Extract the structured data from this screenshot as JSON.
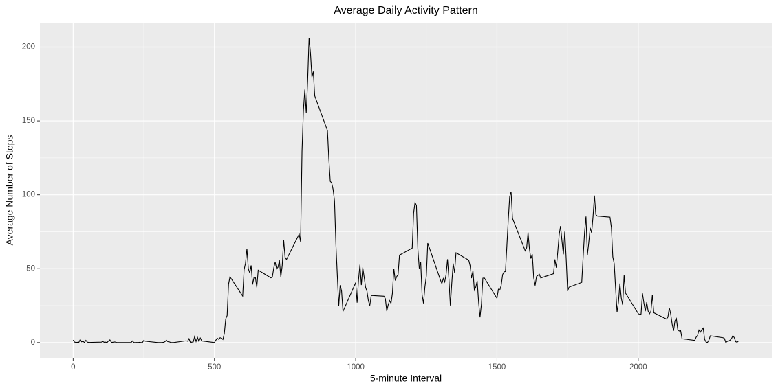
{
  "chart_data": {
    "type": "line",
    "title": "Average Daily Activity Pattern",
    "x_label": "5-minute Interval",
    "y_label": "Average Number of Steps",
    "x": [
      0,
      5,
      10,
      15,
      20,
      25,
      30,
      35,
      40,
      45,
      50,
      55,
      100,
      105,
      110,
      115,
      120,
      125,
      130,
      135,
      140,
      145,
      150,
      155,
      200,
      205,
      210,
      215,
      220,
      225,
      230,
      235,
      240,
      245,
      250,
      255,
      300,
      305,
      310,
      315,
      320,
      325,
      330,
      335,
      340,
      345,
      350,
      355,
      400,
      405,
      410,
      415,
      420,
      425,
      430,
      435,
      440,
      445,
      450,
      455,
      500,
      505,
      510,
      515,
      520,
      525,
      530,
      535,
      540,
      545,
      550,
      555,
      600,
      605,
      610,
      615,
      620,
      625,
      630,
      635,
      640,
      645,
      650,
      655,
      700,
      705,
      710,
      715,
      720,
      725,
      730,
      735,
      740,
      745,
      750,
      755,
      800,
      805,
      810,
      815,
      820,
      825,
      830,
      835,
      840,
      845,
      850,
      855,
      900,
      905,
      910,
      915,
      920,
      925,
      930,
      935,
      940,
      945,
      950,
      955,
      1000,
      1005,
      1010,
      1015,
      1020,
      1025,
      1030,
      1035,
      1040,
      1045,
      1050,
      1055,
      1100,
      1105,
      1110,
      1115,
      1120,
      1125,
      1130,
      1135,
      1140,
      1145,
      1150,
      1155,
      1200,
      1205,
      1210,
      1215,
      1220,
      1225,
      1230,
      1235,
      1240,
      1245,
      1250,
      1255,
      1300,
      1305,
      1310,
      1315,
      1320,
      1325,
      1330,
      1335,
      1340,
      1345,
      1350,
      1355,
      1400,
      1405,
      1410,
      1415,
      1420,
      1425,
      1430,
      1435,
      1440,
      1445,
      1450,
      1455,
      1500,
      1505,
      1510,
      1515,
      1520,
      1525,
      1530,
      1535,
      1540,
      1545,
      1550,
      1555,
      1600,
      1605,
      1610,
      1615,
      1620,
      1625,
      1630,
      1635,
      1640,
      1645,
      1650,
      1655,
      1700,
      1705,
      1710,
      1715,
      1720,
      1725,
      1730,
      1735,
      1740,
      1745,
      1750,
      1755,
      1800,
      1805,
      1810,
      1815,
      1820,
      1825,
      1830,
      1835,
      1840,
      1845,
      1850,
      1855,
      1900,
      1905,
      1910,
      1915,
      1920,
      1925,
      1930,
      1935,
      1940,
      1945,
      1950,
      1955,
      2000,
      2005,
      2010,
      2015,
      2020,
      2025,
      2030,
      2035,
      2040,
      2045,
      2050,
      2055,
      2100,
      2105,
      2110,
      2115,
      2120,
      2125,
      2130,
      2135,
      2140,
      2145,
      2150,
      2155,
      2200,
      2205,
      2210,
      2215,
      2220,
      2225,
      2230,
      2235,
      2240,
      2245,
      2250,
      2255,
      2300,
      2305,
      2310,
      2315,
      2320,
      2325,
      2330,
      2335,
      2340,
      2345,
      2350,
      2355
    ],
    "values": [
      1.7,
      0.3,
      0.1,
      0.2,
      0.1,
      2.1,
      0.5,
      0.9,
      0,
      1.5,
      0.3,
      0.1,
      0.3,
      0.7,
      0.2,
      0.3,
      0,
      1.1,
      1.8,
      0.2,
      0.2,
      0.4,
      0.3,
      0,
      0,
      0,
      1.1,
      0,
      0,
      0.1,
      0,
      0.2,
      0,
      0,
      1.5,
      0.9,
      0,
      0,
      0,
      0,
      0.2,
      0.6,
      1.6,
      0.6,
      0.5,
      0.1,
      0,
      0,
      1.2,
      0.9,
      2.6,
      0,
      0.3,
      0.4,
      4.1,
      0.7,
      3.5,
      0.8,
      3.1,
      1.1,
      0,
      1.6,
      3,
      2.2,
      3.3,
      3,
      2.1,
      6.1,
      16,
      18.3,
      39.5,
      44.5,
      31.5,
      49.3,
      53.8,
      63.5,
      50,
      47.1,
      52.2,
      39.3,
      44,
      44.2,
      37.4,
      49,
      43.8,
      44.4,
      50.5,
      54.5,
      49.9,
      51,
      55.7,
      44.3,
      52.3,
      69.5,
      57.8,
      56.2,
      73.4,
      68.2,
      129.4,
      157.5,
      171.2,
      155.4,
      177.3,
      206.2,
      195.9,
      179.6,
      183.4,
      167,
      143.5,
      124,
      109.1,
      108.1,
      103.7,
      96,
      66.2,
      45.2,
      24.8,
      38.8,
      35,
      21.1,
      40.6,
      27,
      42.4,
      52.7,
      38.9,
      50.8,
      44.3,
      37.4,
      34.7,
      28.3,
      25.1,
      31.9,
      31.4,
      29.7,
      21.3,
      25.5,
      28.4,
      26.5,
      33.4,
      50,
      42,
      44.6,
      46,
      59.2,
      63.9,
      87.7,
      94.8,
      92.8,
      63.4,
      50.2,
      54.5,
      32.4,
      26.5,
      37.7,
      45.1,
      67.3,
      42.3,
      39.9,
      43.3,
      41,
      46.2,
      56.4,
      42.8,
      25.1,
      40,
      53.5,
      47.3,
      60.8,
      55.8,
      52,
      43.6,
      48.7,
      35.5,
      37.5,
      41.8,
      27.5,
      17.1,
      26.1,
      43.6,
      43.8,
      30,
      36.1,
      35.5,
      38.8,
      46,
      47.8,
      48.1,
      65.3,
      82.9,
      98.7,
      102.1,
      84,
      62.1,
      64.1,
      74.5,
      63.2,
      56.9,
      59.8,
      43.9,
      38.6,
      44.7,
      45.5,
      46.2,
      43.7,
      46.6,
      56.3,
      50.7,
      61.2,
      72.7,
      78.9,
      68.9,
      59.7,
      75.1,
      56.5,
      34.8,
      37.5,
      40.7,
      58,
      74.7,
      85.3,
      59.3,
      67.8,
      77.7,
      74.2,
      85.3,
      99.5,
      86.6,
      85.6,
      84.9,
      77.8,
      58,
      53.4,
      36.3,
      20.7,
      27.4,
      40,
      30.2,
      25.5,
      45.7,
      33.5,
      19.6,
      19,
      19.3,
      33.3,
      26.8,
      21.2,
      27.3,
      21.3,
      19.5,
      21.3,
      32.3,
      20.2,
      15.9,
      17.2,
      23.5,
      19.2,
      12.5,
      8,
      14.7,
      16.3,
      8.7,
      7.8,
      8.1,
      2.6,
      1.5,
      3.7,
      4.8,
      8.5,
      7.1,
      8.7,
      9.8,
      2.2,
      0.3,
      0.1,
      1.6,
      4.6,
      3.3,
      2.8,
      0,
      0.8,
      1,
      1.6,
      2.6,
      4.7,
      3.3,
      0.6,
      0.2,
      1.1
    ],
    "color": "#000000",
    "xlim": [
      -117.75,
      2472.75
    ],
    "xticks": [
      0,
      500,
      1000,
      1500,
      2000
    ],
    "ylim": [
      -10.3,
      216.5
    ],
    "yticks": [
      0,
      50,
      100,
      150,
      200
    ],
    "grid": true
  }
}
